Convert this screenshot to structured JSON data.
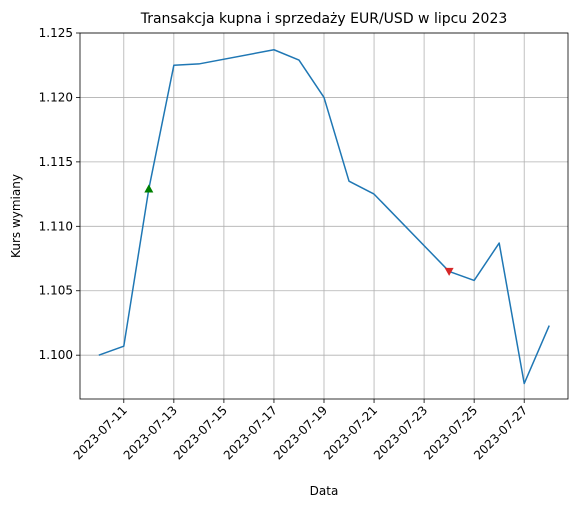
{
  "chart_data": {
    "type": "line",
    "title": "Transakcja kupna i sprzedaży EUR/USD w lipcu 2023",
    "xlabel": "Data",
    "ylabel": "Kurs wymiany",
    "x": [
      "2023-07-10",
      "2023-07-11",
      "2023-07-12",
      "2023-07-13",
      "2023-07-14",
      "2023-07-17",
      "2023-07-18",
      "2023-07-19",
      "2023-07-20",
      "2023-07-21",
      "2023-07-24",
      "2023-07-25",
      "2023-07-26",
      "2023-07-27",
      "2023-07-28"
    ],
    "series": [
      {
        "values": [
          1.1,
          1.1007,
          1.1129,
          1.1225,
          1.1226,
          1.1237,
          1.1229,
          1.12,
          1.1135,
          1.1125,
          1.1065,
          1.1058,
          1.1087,
          1.0978,
          1.1023
        ],
        "color": "#1f77b4"
      }
    ],
    "markers": [
      {
        "type": "buy",
        "x": "2023-07-12",
        "y": 1.1129,
        "shape": "triangle-up",
        "color": "#008000"
      },
      {
        "type": "sell",
        "x": "2023-07-24",
        "y": 1.1065,
        "shape": "triangle-down",
        "color": "#d62728"
      }
    ],
    "xticks": [
      "2023-07-11",
      "2023-07-13",
      "2023-07-15",
      "2023-07-17",
      "2023-07-19",
      "2023-07-21",
      "2023-07-23",
      "2023-07-25",
      "2023-07-27"
    ],
    "yticks": [
      1.1,
      1.105,
      1.11,
      1.115,
      1.12,
      1.125
    ],
    "ytick_labels": [
      "1.100",
      "1.105",
      "1.110",
      "1.115",
      "1.120",
      "1.125"
    ],
    "xlim": [
      "2023-07-09T06:00",
      "2023-07-28T18:00"
    ],
    "ylim": [
      1.0966,
      1.125
    ],
    "grid": true
  }
}
